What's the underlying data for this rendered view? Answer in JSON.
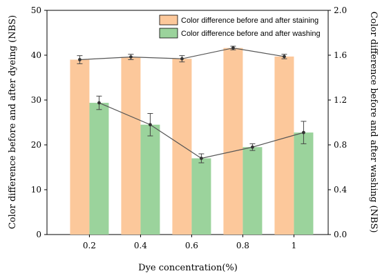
{
  "chart_data": {
    "type": "bar",
    "categories": [
      "0.2",
      "0.4",
      "0.6",
      "0.8",
      "1"
    ],
    "xlabel": "Dye concentration(%)",
    "ylabel_left": "Color difference before and after dyeing (NBS)",
    "ylabel_right": "Color difference before and after washing (NBS)",
    "ylim_left": [
      0,
      50
    ],
    "ylim_right": [
      0,
      2.0
    ],
    "yticks_left": [
      "0",
      "10",
      "20",
      "30",
      "40",
      "50"
    ],
    "yticks_right": [
      "0.0",
      "0.4",
      "0.8",
      "1.2",
      "1.6",
      "2.0"
    ],
    "legend_position": "top-right",
    "series": [
      {
        "name": "Color difference before and after staining",
        "axis": "left",
        "values": [
          39.0,
          39.6,
          39.2,
          41.6,
          39.7
        ],
        "errors": [
          0.9,
          0.6,
          0.7,
          0.4,
          0.5
        ],
        "color": "#fcc89b",
        "line_values": [
          39.0,
          39.6,
          39.2,
          41.6,
          39.7
        ]
      },
      {
        "name": "Color difference before and after washing",
        "axis": "right",
        "values": [
          1.175,
          0.98,
          0.68,
          0.78,
          0.91
        ],
        "errors": [
          0.06,
          0.1,
          0.04,
          0.03,
          0.1
        ],
        "color": "#9bd39c",
        "line_values": [
          1.175,
          0.98,
          0.68,
          0.78,
          0.91
        ]
      }
    ]
  }
}
